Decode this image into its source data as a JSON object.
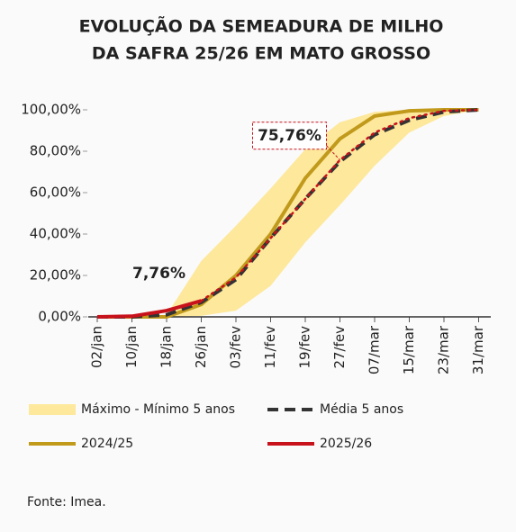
{
  "chart_data": {
    "type": "line",
    "title": [
      "EVOLUÇÃO DA SEMEADURA DE MILHO",
      "DA SAFRA 25/26 EM MATO GROSSO"
    ],
    "categories": [
      "02/jan",
      "10/jan",
      "18/jan",
      "26/jan",
      "03/fev",
      "11/fev",
      "19/fev",
      "27/fev",
      "07/mar",
      "15/mar",
      "23/mar",
      "31/mar"
    ],
    "ylim": [
      0,
      100
    ],
    "yticks": [
      {
        "value": 0,
        "label": "0,00%"
      },
      {
        "value": 20,
        "label": "20,00%"
      },
      {
        "value": 40,
        "label": "40,00%"
      },
      {
        "value": 60,
        "label": "60,00%"
      },
      {
        "value": 80,
        "label": "80,00%"
      },
      {
        "value": 100,
        "label": "100,00%"
      }
    ],
    "series": [
      {
        "name": "Máximo - Mínimo 5 anos",
        "style": "band",
        "color": "#fde89c",
        "max": [
          0,
          0,
          1,
          27,
          44,
          62,
          81,
          94,
          99,
          100,
          100,
          100
        ],
        "min": [
          0,
          0,
          0,
          0.5,
          3,
          15,
          36,
          54,
          73,
          89,
          97,
          100
        ]
      },
      {
        "name": "Média 5 anos",
        "style": "dashed",
        "color": "#333333",
        "values": [
          0,
          0,
          1,
          7,
          18,
          38,
          57,
          75,
          88,
          95,
          99,
          100
        ]
      },
      {
        "name": "2024/25",
        "style": "solid",
        "color": "#c19a1c",
        "values": [
          0,
          0,
          0,
          6,
          20,
          40,
          67,
          86,
          97,
          99.5,
          100,
          100
        ]
      },
      {
        "name": "2025/26",
        "style": "solid",
        "color": "#c8121b",
        "values": [
          0,
          0.3,
          3,
          7.76,
          null,
          null,
          null,
          null,
          null,
          null,
          null,
          null
        ],
        "value_labels": [
          null,
          null,
          null,
          "7,76%",
          null,
          null,
          null,
          null,
          null,
          null,
          null,
          null
        ]
      },
      {
        "style": "dotted",
        "color": "#c8121b",
        "label_style": "boxed",
        "values": [
          null,
          null,
          null,
          7.76,
          19,
          38,
          57,
          75.76,
          89,
          96,
          99.5,
          100
        ],
        "value_labels": [
          null,
          null,
          null,
          null,
          null,
          null,
          null,
          "75,76%",
          null,
          null,
          null,
          null
        ]
      }
    ],
    "source": "Fonte: Imea."
  }
}
